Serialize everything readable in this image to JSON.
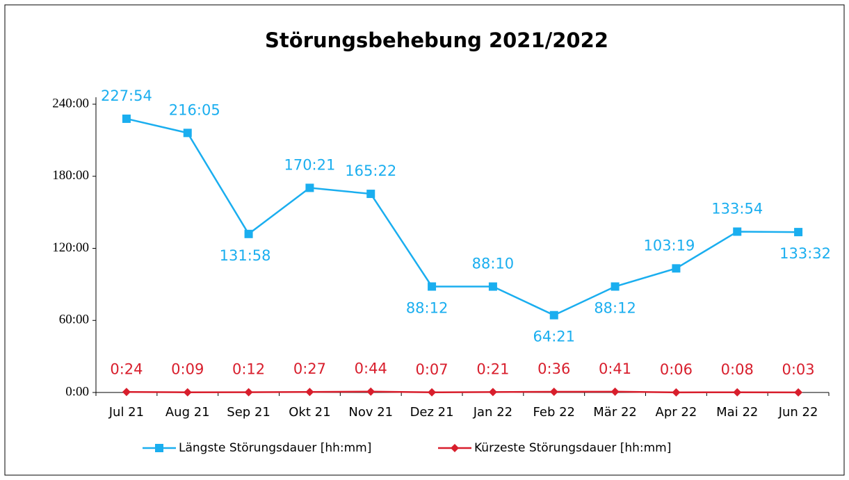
{
  "chart_data": {
    "type": "line",
    "title": "Störungsbehebung 2021/2022",
    "categories": [
      "Jul 21",
      "Aug 21",
      "Sep 21",
      "Okt 21",
      "Nov 21",
      "Dez 21",
      "Jan 22",
      "Feb 22",
      "Mär 22",
      "Apr 22",
      "Mai 22",
      "Jun 22"
    ],
    "series": [
      {
        "name": "Längste Störungsdauer [hh:mm]",
        "color": "#1aaeef",
        "marker": "square",
        "values": [
          227.9,
          216.0833,
          131.9667,
          170.35,
          165.3667,
          88.2,
          88.1667,
          64.35,
          88.2,
          103.3167,
          133.9,
          133.5333
        ],
        "value_labels": [
          "227:54",
          "216:05",
          "131:58",
          "170:21",
          "165:22",
          "88:12",
          "88:10",
          "64:21",
          "88:12",
          "103:19",
          "133:54",
          "133:32"
        ]
      },
      {
        "name": "Kürzeste Störungsdauer [hh:mm]",
        "color": "#d81e2c",
        "marker": "diamond",
        "values": [
          0.4,
          0.15,
          0.2,
          0.45,
          0.7333,
          0.1167,
          0.35,
          0.6,
          0.6833,
          0.1,
          0.1333,
          0.05
        ],
        "value_labels": [
          "0:24",
          "0:09",
          "0:12",
          "0:27",
          "0:44",
          "0:07",
          "0:21",
          "0:36",
          "0:41",
          "0:06",
          "0:08",
          "0:03"
        ]
      }
    ],
    "ylim": [
      0,
      240
    ],
    "yticks": [
      {
        "value": 0,
        "label": "0:00"
      },
      {
        "value": 60,
        "label": "60:00"
      },
      {
        "value": 120,
        "label": "120:00"
      },
      {
        "value": 180,
        "label": "180:00"
      },
      {
        "value": 240,
        "label": "240:00"
      }
    ],
    "grid": false,
    "legend": "bottom"
  }
}
